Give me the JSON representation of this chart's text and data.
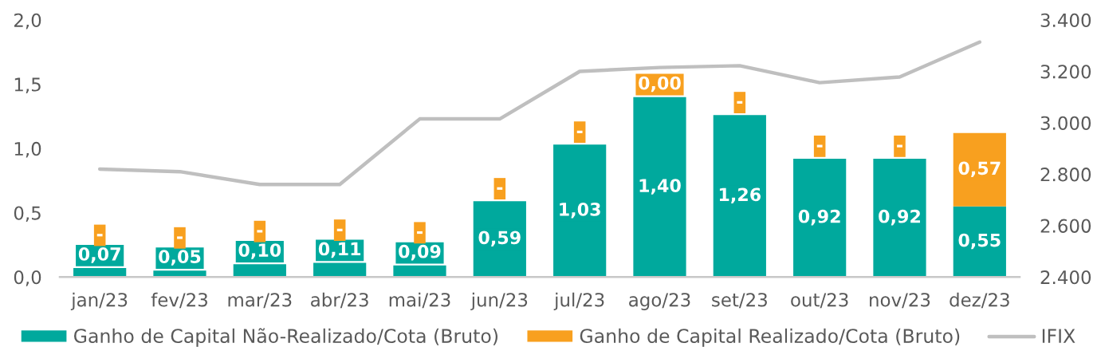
{
  "chart_data": {
    "type": "bar",
    "stacked": true,
    "categories": [
      "jan/23",
      "fev/23",
      "mar/23",
      "abr/23",
      "mai/23",
      "jun/23",
      "jul/23",
      "ago/23",
      "set/23",
      "out/23",
      "nov/23",
      "dez/23"
    ],
    "series": [
      {
        "name": "Ganho de Capital Não-Realizado/Cota (Bruto)",
        "color": "#00a99d",
        "values": [
          0.07,
          0.05,
          0.1,
          0.11,
          0.09,
          0.59,
          1.03,
          1.4,
          1.26,
          0.92,
          0.92,
          0.55
        ],
        "value_labels": [
          "0,07",
          "0,05",
          "0,10",
          "0,11",
          "0,09",
          "0,59",
          "1,03",
          "1,40",
          "1,26",
          "0,92",
          "0,92",
          "0,55"
        ]
      },
      {
        "name": "Ganho de Capital Realizado/Cota (Bruto)",
        "color": "#f8a01f",
        "values": [
          0,
          0,
          0,
          0,
          0,
          0,
          0,
          0,
          0,
          0,
          0,
          0.57
        ],
        "value_labels": [
          "-",
          "-",
          "-",
          "-",
          "-",
          "-",
          "-",
          "0,00",
          "-",
          "-",
          "-",
          "0,57"
        ]
      },
      {
        "name": "IFIX",
        "type": "line",
        "axis": "y2",
        "color": "#bfbfbf",
        "values": [
          2820,
          2810,
          2760,
          2760,
          3015,
          3015,
          3200,
          3215,
          3222,
          3156,
          3178,
          3314
        ]
      }
    ],
    "ylim": [
      0,
      2.0
    ],
    "yticks": [
      {
        "value": 0,
        "label": "0,0"
      },
      {
        "value": 0.5,
        "label": "0,5"
      },
      {
        "value": 1.0,
        "label": "1,0"
      },
      {
        "value": 1.5,
        "label": "1,5"
      },
      {
        "value": 2.0,
        "label": "2,0"
      }
    ],
    "y2lim": [
      2400,
      3400
    ],
    "y2ticks": [
      {
        "value": 2400,
        "label": "2.400"
      },
      {
        "value": 2600,
        "label": "2.600"
      },
      {
        "value": 2800,
        "label": "2.800"
      },
      {
        "value": 3000,
        "label": "3.000"
      },
      {
        "value": 3200,
        "label": "3.200"
      },
      {
        "value": 3400,
        "label": "3.400"
      }
    ],
    "legend": "bottom"
  }
}
